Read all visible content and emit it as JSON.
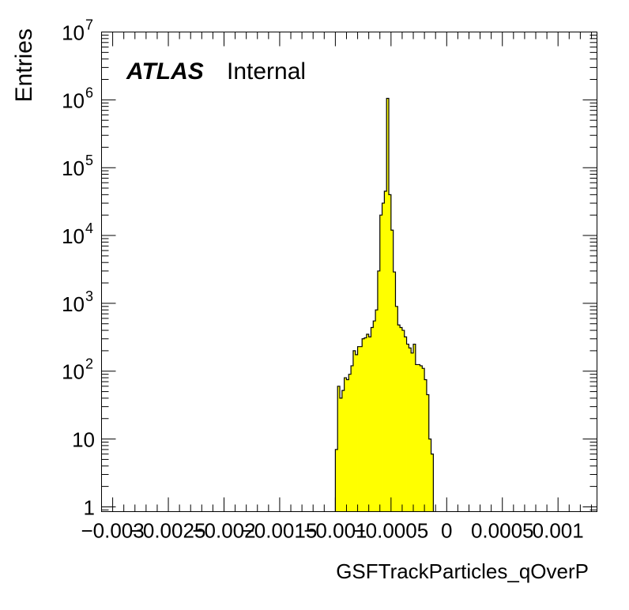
{
  "chart_data": {
    "type": "bar",
    "subtype": "histogram",
    "title": "",
    "xlabel": "GSFTrackParticles_qOverP",
    "ylabel": "Entries",
    "xlim": [
      -0.0031,
      0.00135
    ],
    "ylim": [
      0.85,
      10000000
    ],
    "yscale": "log",
    "grid": false,
    "fill_color": "#ffff00",
    "line_color": "#000000",
    "x_ticks": [
      {
        "value": -0.003,
        "label": "−0.003"
      },
      {
        "value": -0.0025,
        "label": "−0.0025"
      },
      {
        "value": -0.002,
        "label": "−0.002"
      },
      {
        "value": -0.0015,
        "label": "−0.0015"
      },
      {
        "value": -0.001,
        "label": "−0.001"
      },
      {
        "value": -0.0005,
        "label": "−0.0005"
      },
      {
        "value": 0,
        "label": "0"
      },
      {
        "value": 0.0005,
        "label": "0.0005"
      },
      {
        "value": 0.001,
        "label": "0.001"
      }
    ],
    "y_ticks": [
      {
        "value": 1,
        "base": "1",
        "exp": ""
      },
      {
        "value": 10,
        "base": "10",
        "exp": ""
      },
      {
        "value": 100,
        "base": "10",
        "exp": "2"
      },
      {
        "value": 1000,
        "base": "10",
        "exp": "3"
      },
      {
        "value": 10000,
        "base": "10",
        "exp": "4"
      },
      {
        "value": 100000,
        "base": "10",
        "exp": "5"
      },
      {
        "value": 1000000,
        "base": "10",
        "exp": "6"
      },
      {
        "value": 10000000,
        "base": "10",
        "exp": "7"
      }
    ],
    "bin_start": -0.001,
    "bin_width": 2e-05,
    "values": [
      7,
      60,
      40,
      52,
      80,
      75,
      90,
      120,
      200,
      175,
      230,
      230,
      300,
      310,
      350,
      320,
      440,
      550,
      800,
      3000,
      20000,
      30000,
      45000,
      1050000,
      40000,
      12000,
      2900,
      900,
      480,
      440,
      400,
      320,
      250,
      220,
      185,
      250,
      125,
      125,
      120,
      110,
      75,
      45,
      10,
      6
    ],
    "atlas_label": {
      "bold": "ATLAS",
      "text": "Internal"
    }
  }
}
